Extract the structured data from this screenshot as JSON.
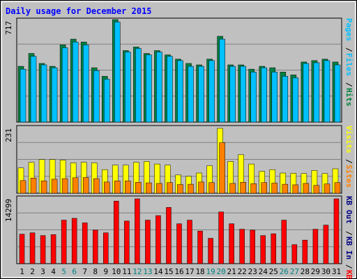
{
  "title": "Daily usage for December 2015",
  "colors": {
    "hits": "#008040",
    "files": "#00c0ff",
    "sites": "#ff8000",
    "visits": "#ffff00",
    "kbin": "#ff0000",
    "kbout": "#000080",
    "weekend_day": "#008080",
    "weekday_day": "#000000",
    "plot_bg": "#c0c0c0",
    "border": "#000000"
  },
  "chart_data": [
    {
      "type": "bar",
      "panel": "pages-files-hits",
      "y_max_label": "717",
      "ylim": [
        0,
        717
      ],
      "legend": [
        "Pages",
        "Files",
        "Hits"
      ],
      "categories": [
        "1",
        "2",
        "3",
        "4",
        "5",
        "6",
        "7",
        "8",
        "9",
        "10",
        "11",
        "12",
        "13",
        "14",
        "15",
        "16",
        "17",
        "18",
        "19",
        "20",
        "21",
        "22",
        "23",
        "24",
        "25",
        "26",
        "27",
        "28",
        "29",
        "30",
        "31"
      ],
      "weekend_days": [
        "5",
        "6",
        "12",
        "13",
        "19",
        "20",
        "26",
        "27"
      ],
      "series": [
        {
          "name": "Hits",
          "values": [
            390,
            480,
            410,
            390,
            540,
            580,
            560,
            380,
            320,
            717,
            500,
            525,
            480,
            500,
            470,
            440,
            410,
            400,
            440,
            600,
            400,
            400,
            370,
            390,
            380,
            350,
            330,
            420,
            430,
            440,
            420
          ]
        },
        {
          "name": "Files",
          "values": [
            370,
            460,
            400,
            380,
            520,
            560,
            540,
            360,
            300,
            700,
            490,
            515,
            470,
            490,
            460,
            430,
            390,
            390,
            430,
            580,
            390,
            390,
            350,
            380,
            350,
            320,
            310,
            410,
            415,
            430,
            400
          ]
        },
        {
          "name": "Pages",
          "values": [
            370,
            460,
            400,
            380,
            520,
            560,
            540,
            360,
            300,
            700,
            490,
            515,
            470,
            490,
            460,
            430,
            390,
            390,
            430,
            580,
            390,
            390,
            350,
            380,
            350,
            320,
            310,
            410,
            415,
            430,
            400
          ]
        }
      ]
    },
    {
      "type": "bar",
      "panel": "visits-sites",
      "y_max_label": "231",
      "ylim": [
        0,
        231
      ],
      "legend": [
        "Visits",
        "Sites"
      ],
      "series": [
        {
          "name": "Visits",
          "values": [
            90,
            110,
            120,
            120,
            118,
            108,
            110,
            108,
            84,
            100,
            100,
            110,
            113,
            104,
            100,
            65,
            60,
            72,
            98,
            231,
            113,
            137,
            104,
            78,
            84,
            72,
            71,
            70,
            81,
            70,
            87
          ]
        },
        {
          "name": "Sites",
          "values": [
            45,
            54,
            44,
            50,
            52,
            55,
            56,
            52,
            40,
            44,
            44,
            39,
            37,
            35,
            38,
            31,
            32,
            40,
            38,
            180,
            35,
            39,
            34,
            38,
            36,
            32,
            30,
            35,
            28,
            33,
            38
          ]
        }
      ]
    },
    {
      "type": "bar",
      "panel": "kbin-kbout",
      "y_max_label": "14299",
      "ylim": [
        0,
        14299
      ],
      "legend": [
        "KB F",
        "KB In",
        "KB Out"
      ],
      "series": [
        {
          "name": "KB F",
          "values": [
            6500,
            6800,
            6200,
            6400,
            9600,
            10000,
            9000,
            7400,
            6800,
            13800,
            9400,
            14299,
            9600,
            10600,
            12400,
            8800,
            9600,
            7200,
            5600,
            11400,
            8800,
            7600,
            7400,
            6200,
            6600,
            9600,
            4200,
            5200,
            7600,
            8500,
            14299
          ]
        }
      ]
    }
  ]
}
